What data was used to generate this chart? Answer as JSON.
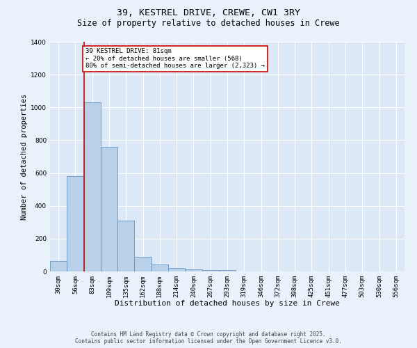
{
  "title": "39, KESTREL DRIVE, CREWE, CW1 3RY",
  "subtitle": "Size of property relative to detached houses in Crewe",
  "xlabel": "Distribution of detached houses by size in Crewe",
  "ylabel": "Number of detached properties",
  "bar_values": [
    65,
    580,
    1030,
    760,
    310,
    90,
    43,
    22,
    14,
    8,
    10,
    0,
    0,
    0,
    0,
    0,
    0,
    0,
    0,
    0,
    0
  ],
  "categories": [
    "30sqm",
    "56sqm",
    "83sqm",
    "109sqm",
    "135sqm",
    "162sqm",
    "188sqm",
    "214sqm",
    "240sqm",
    "267sqm",
    "293sqm",
    "319sqm",
    "346sqm",
    "372sqm",
    "398sqm",
    "425sqm",
    "451sqm",
    "477sqm",
    "503sqm",
    "530sqm",
    "556sqm"
  ],
  "bar_color": "#b8d0e8",
  "bar_edge_color": "#5588bb",
  "vline_color": "#cc0000",
  "annotation_text": "39 KESTREL DRIVE: 81sqm\n← 20% of detached houses are smaller (568)\n80% of semi-detached houses are larger (2,323) →",
  "annotation_box_color": "#ffffff",
  "annotation_edge_color": "#cc0000",
  "ylim": [
    0,
    1400
  ],
  "plot_bg_color": "#dce8f5",
  "fig_bg_color": "#eaf2fb",
  "grid_color": "#ffffff",
  "footer_text": "Contains HM Land Registry data © Crown copyright and database right 2025.\nContains public sector information licensed under the Open Government Licence v3.0.",
  "title_fontsize": 9.5,
  "subtitle_fontsize": 8.5,
  "xlabel_fontsize": 8,
  "ylabel_fontsize": 7.5,
  "tick_fontsize": 6.5,
  "annotation_fontsize": 6.5,
  "footer_fontsize": 5.5
}
